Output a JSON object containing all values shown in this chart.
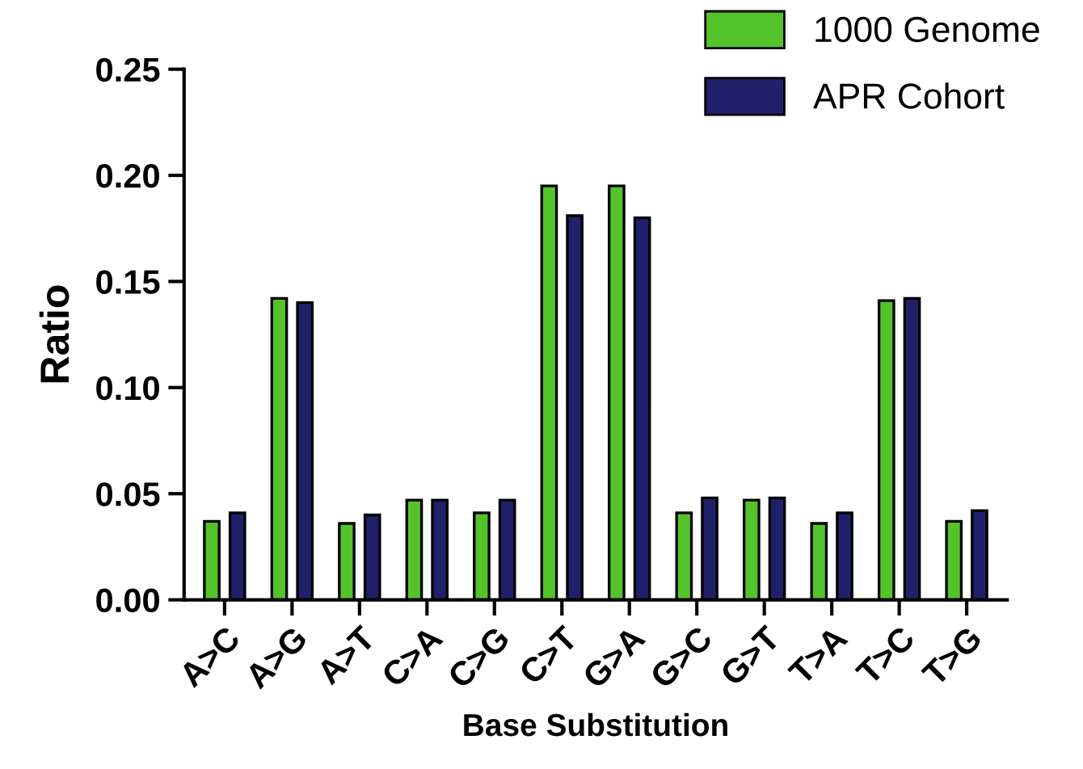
{
  "chart_data": {
    "type": "bar",
    "xlabel": "Base Substitution",
    "ylabel": "Ratio",
    "categories": [
      "A>C",
      "A>G",
      "A>T",
      "C>A",
      "C>G",
      "C>T",
      "G>A",
      "G>C",
      "G>T",
      "T>A",
      "T>C",
      "T>G"
    ],
    "series": [
      {
        "name": "1000 Genome",
        "color": "#53c22b",
        "values": [
          0.037,
          0.142,
          0.036,
          0.047,
          0.041,
          0.195,
          0.195,
          0.041,
          0.047,
          0.036,
          0.141,
          0.037
        ]
      },
      {
        "name": "APR Cohort",
        "color": "#20206a",
        "values": [
          0.041,
          0.14,
          0.04,
          0.047,
          0.047,
          0.181,
          0.18,
          0.048,
          0.048,
          0.041,
          0.142,
          0.042
        ]
      }
    ],
    "ylim": [
      0,
      0.25
    ],
    "yticks": [
      {
        "value": 0,
        "label": "0.00"
      },
      {
        "value": 0.05,
        "label": "0.05"
      },
      {
        "value": 0.1,
        "label": "0.10"
      },
      {
        "value": 0.15,
        "label": "0.15"
      },
      {
        "value": 0.2,
        "label": "0.20"
      },
      {
        "value": 0.25,
        "label": "0.25"
      }
    ],
    "grid": false,
    "legend": "top right"
  }
}
